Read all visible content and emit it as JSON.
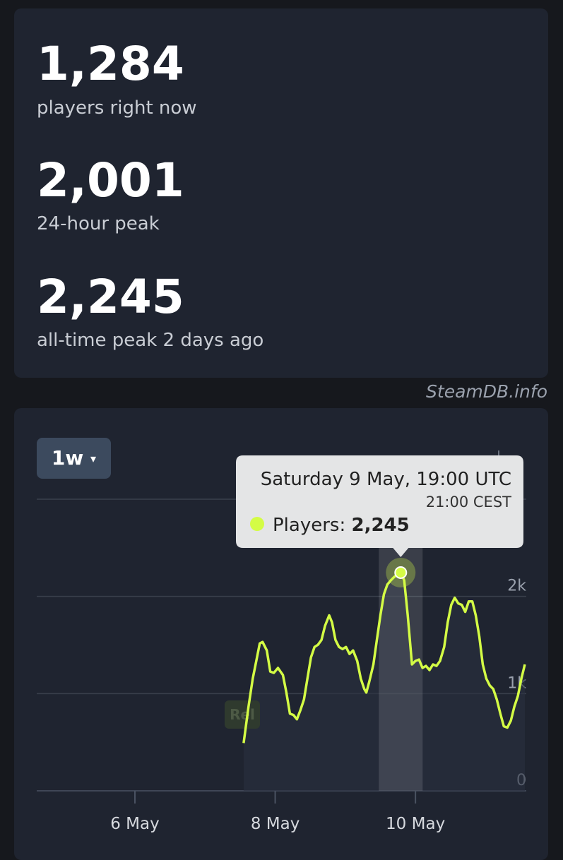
{
  "stats": [
    {
      "value": "1,284",
      "label": "players right now"
    },
    {
      "value": "2,001",
      "label": "24-hour peak"
    },
    {
      "value": "2,245",
      "label": "all-time peak 2 days ago"
    }
  ],
  "watermark": "SteamDB.info",
  "range_button": "1w",
  "release_marker": "Rel",
  "tooltip": {
    "title": "Saturday 9 May, 19:00 UTC",
    "subtitle": "21:00 CEST",
    "label": "Players:",
    "value": "2,245"
  },
  "chart_data": {
    "type": "line",
    "x": [
      7.55,
      7.62,
      7.68,
      7.73,
      7.78,
      7.82,
      7.88,
      7.93,
      7.98,
      8.04,
      8.11,
      8.16,
      8.21,
      8.26,
      8.31,
      8.36,
      8.41,
      8.46,
      8.51,
      8.56,
      8.61,
      8.66,
      8.71,
      8.77,
      8.81,
      8.86,
      8.91,
      8.96,
      9.01,
      9.06,
      9.11,
      9.17,
      9.22,
      9.27,
      9.3,
      9.34,
      9.4,
      9.45,
      9.5,
      9.55,
      9.6,
      9.65,
      9.7,
      9.75,
      9.79,
      9.84,
      9.89,
      9.95,
      10.0,
      10.05,
      10.1,
      10.15,
      10.2,
      10.25,
      10.3,
      10.35,
      10.41,
      10.46,
      10.51,
      10.56,
      10.61,
      10.66,
      10.71,
      10.76,
      10.81,
      10.86,
      10.91,
      10.96,
      11.01,
      11.06,
      11.11,
      11.16,
      11.21,
      11.26,
      11.31,
      11.36,
      11.41,
      11.46,
      11.51,
      11.56
    ],
    "series": [
      {
        "name": "Players",
        "color": "#d4fc45",
        "values": [
          491,
          866,
          1155,
          1336,
          1516,
          1531,
          1444,
          1227,
          1213,
          1264,
          1191,
          1011,
          794,
          780,
          736,
          830,
          939,
          1155,
          1372,
          1480,
          1502,
          1552,
          1697,
          1805,
          1733,
          1552,
          1480,
          1458,
          1480,
          1408,
          1444,
          1336,
          1155,
          1047,
          1011,
          1119,
          1300,
          1552,
          1805,
          2022,
          2123,
          2166,
          2202,
          2230,
          2245,
          2166,
          1805,
          1300,
          1336,
          1350,
          1264,
          1285,
          1242,
          1300,
          1285,
          1336,
          1480,
          1733,
          1913,
          1986,
          1928,
          1913,
          1841,
          1949,
          1949,
          1805,
          1588,
          1300,
          1155,
          1083,
          1047,
          939,
          794,
          664,
          650,
          722,
          866,
          975,
          1155,
          1300
        ]
      }
    ],
    "xlim": [
      4.6,
      11.58
    ],
    "xticks": [
      {
        "value": 6,
        "label": "6 May"
      },
      {
        "value": 8,
        "label": "8 May"
      },
      {
        "value": 10,
        "label": "10 May"
      }
    ],
    "ylim": [
      0,
      3000
    ],
    "yticks": [
      0,
      {
        "value": 1000,
        "label": "1k"
      },
      {
        "value": 2000,
        "label": "2k"
      }
    ],
    "grid": true
  }
}
